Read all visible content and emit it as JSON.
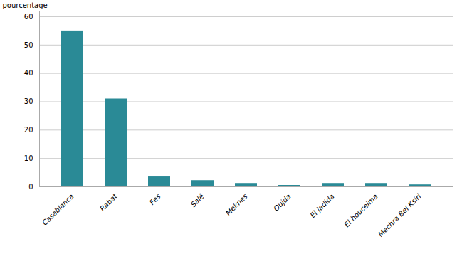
{
  "chart_data": {
    "type": "bar",
    "ylabel": "pourcentage",
    "categories": [
      "Casablanca",
      "Rabat",
      "Fes",
      "Salé",
      "Meknes",
      "Oujda",
      "El jadida",
      "El houceima",
      "Mechra Bel Ksiri"
    ],
    "values": [
      55.0,
      31.0,
      3.5,
      2.2,
      1.2,
      0.5,
      1.2,
      1.2,
      0.7
    ],
    "color": "#2a8a96",
    "ylim": [
      0,
      62
    ],
    "yticks": [
      0,
      10,
      20,
      30,
      40,
      50,
      60
    ],
    "grid": true
  }
}
